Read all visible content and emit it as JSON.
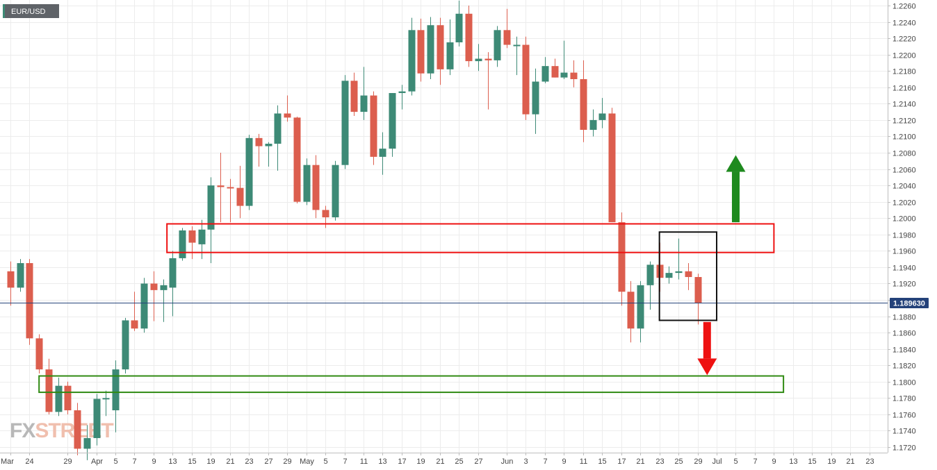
{
  "symbol": "EUR/USD",
  "last_price_label": "1.189630",
  "logo": {
    "text": "FXSTREET",
    "color_fx": "#b8b8b8",
    "color_street": "#f0bfae"
  },
  "colors": {
    "bull": "#3d8a76",
    "bear": "#dc5e4e",
    "grid": "#ececec",
    "price_line": "#24427a",
    "resistance_box": "#ee1111",
    "support_box": "#2f8a12",
    "focus_box": "#111111",
    "up_arrow": "#1f8a1f",
    "down_arrow": "#ee1111"
  },
  "chart_data": {
    "type": "candlestick",
    "title": "EUR/USD",
    "timeframe": "daily",
    "ylim": [
      1.1705,
      1.2265
    ],
    "y_ticks": [
      "1.2260",
      "1.2240",
      "1.2220",
      "1.2200",
      "1.2180",
      "1.2160",
      "1.2140",
      "1.2120",
      "1.2100",
      "1.2080",
      "1.2060",
      "1.2040",
      "1.2020",
      "1.2000",
      "1.1980",
      "1.1960",
      "1.1940",
      "1.1920",
      "1.1900",
      "1.1880",
      "1.1860",
      "1.1840",
      "1.1820",
      "1.1800",
      "1.1780",
      "1.1760",
      "1.1740",
      "1.1720"
    ],
    "x_labels": [
      {
        "slot": 0,
        "label": "Mar"
      },
      {
        "slot": 2,
        "label": "24"
      },
      {
        "slot": 6,
        "label": "29"
      },
      {
        "slot": 9,
        "label": "Apr"
      },
      {
        "slot": 11,
        "label": "5"
      },
      {
        "slot": 13,
        "label": "7"
      },
      {
        "slot": 15,
        "label": "9"
      },
      {
        "slot": 17,
        "label": "13"
      },
      {
        "slot": 19,
        "label": "15"
      },
      {
        "slot": 21,
        "label": "19"
      },
      {
        "slot": 23,
        "label": "21"
      },
      {
        "slot": 25,
        "label": "23"
      },
      {
        "slot": 27,
        "label": "27"
      },
      {
        "slot": 29,
        "label": "29"
      },
      {
        "slot": 31,
        "label": "May"
      },
      {
        "slot": 33,
        "label": "5"
      },
      {
        "slot": 35,
        "label": "7"
      },
      {
        "slot": 37,
        "label": "11"
      },
      {
        "slot": 39,
        "label": "13"
      },
      {
        "slot": 41,
        "label": "17"
      },
      {
        "slot": 43,
        "label": "19"
      },
      {
        "slot": 45,
        "label": "21"
      },
      {
        "slot": 47,
        "label": "25"
      },
      {
        "slot": 49,
        "label": "27"
      },
      {
        "slot": 52,
        "label": "Jun"
      },
      {
        "slot": 54,
        "label": "3"
      },
      {
        "slot": 56,
        "label": "7"
      },
      {
        "slot": 58,
        "label": "9"
      },
      {
        "slot": 60,
        "label": "11"
      },
      {
        "slot": 62,
        "label": "15"
      },
      {
        "slot": 64,
        "label": "17"
      },
      {
        "slot": 66,
        "label": "21"
      },
      {
        "slot": 68,
        "label": "23"
      },
      {
        "slot": 70,
        "label": "25"
      },
      {
        "slot": 72,
        "label": "29"
      },
      {
        "slot": 74,
        "label": "Jul"
      },
      {
        "slot": 76,
        "label": "5"
      },
      {
        "slot": 78,
        "label": "7"
      },
      {
        "slot": 80,
        "label": "9"
      },
      {
        "slot": 82,
        "label": "13"
      },
      {
        "slot": 84,
        "label": "15"
      },
      {
        "slot": 86,
        "label": "19"
      },
      {
        "slot": 88,
        "label": "21"
      },
      {
        "slot": 90,
        "label": "23"
      }
    ],
    "candles": [
      [
        1.1935,
        1.1947,
        1.1893,
        1.1915
      ],
      [
        1.1915,
        1.195,
        1.191,
        1.1945
      ],
      [
        1.1945,
        1.195,
        1.1845,
        1.1853
      ],
      [
        1.1853,
        1.1858,
        1.181,
        1.1815
      ],
      [
        1.1815,
        1.1828,
        1.176,
        1.1763
      ],
      [
        1.1763,
        1.1805,
        1.1758,
        1.1795
      ],
      [
        1.1795,
        1.18,
        1.176,
        1.1765
      ],
      [
        1.1765,
        1.1774,
        1.171,
        1.1718
      ],
      [
        1.1718,
        1.1747,
        1.1704,
        1.1731
      ],
      [
        1.1731,
        1.1785,
        1.1722,
        1.1779
      ],
      [
        1.1779,
        1.1789,
        1.1758,
        1.178
      ],
      [
        1.1765,
        1.1826,
        1.1738,
        1.1815
      ],
      [
        1.1815,
        1.1878,
        1.181,
        1.1875
      ],
      [
        1.1875,
        1.191,
        1.1862,
        1.1865
      ],
      [
        1.1865,
        1.1927,
        1.186,
        1.192
      ],
      [
        1.192,
        1.1935,
        1.1874,
        1.1912
      ],
      [
        1.1912,
        1.1925,
        1.1873,
        1.1918
      ],
      [
        1.1915,
        1.196,
        1.188,
        1.1951
      ],
      [
        1.1951,
        1.1988,
        1.1948,
        1.1985
      ],
      [
        1.1985,
        1.199,
        1.195,
        1.197
      ],
      [
        1.1968,
        1.1998,
        1.195,
        1.1986
      ],
      [
        1.1986,
        1.205,
        1.1945,
        1.204
      ],
      [
        1.204,
        1.208,
        1.1995,
        1.2038
      ],
      [
        1.2038,
        1.2048,
        1.1995,
        1.2037
      ],
      [
        1.2037,
        1.2064,
        1.2,
        1.2015
      ],
      [
        1.2015,
        1.2102,
        1.201,
        1.2098
      ],
      [
        1.2098,
        1.2103,
        1.2063,
        1.2088
      ],
      [
        1.2088,
        1.2093,
        1.2063,
        1.2091
      ],
      [
        1.2091,
        1.2138,
        1.2058,
        1.2128
      ],
      [
        1.2128,
        1.215,
        1.2118,
        1.2123
      ],
      [
        1.2123,
        1.2124,
        1.2018,
        1.202
      ],
      [
        1.202,
        1.2073,
        1.2016,
        1.2065
      ],
      [
        1.2065,
        1.2077,
        1.2,
        1.201
      ],
      [
        1.201,
        1.2015,
        1.1988,
        1.2001
      ],
      [
        1.2001,
        1.207,
        1.1997,
        1.2065
      ],
      [
        1.2065,
        1.2175,
        1.206,
        1.2168
      ],
      [
        1.2168,
        1.2178,
        1.2125,
        1.213
      ],
      [
        1.213,
        1.2185,
        1.212,
        1.215
      ],
      [
        1.215,
        1.2155,
        1.2065,
        1.2075
      ],
      [
        1.2075,
        1.2105,
        1.2053,
        1.2085
      ],
      [
        1.2085,
        1.2153,
        1.2075,
        1.2153
      ],
      [
        1.2153,
        1.2163,
        1.2133,
        1.2155
      ],
      [
        1.2155,
        1.2245,
        1.215,
        1.223
      ],
      [
        1.223,
        1.2244,
        1.2167,
        1.2177
      ],
      [
        1.2177,
        1.2246,
        1.217,
        1.2236
      ],
      [
        1.2236,
        1.2245,
        1.2163,
        1.2182
      ],
      [
        1.2182,
        1.2243,
        1.2175,
        1.2215
      ],
      [
        1.2215,
        1.2266,
        1.221,
        1.225
      ],
      [
        1.225,
        1.226,
        1.2185,
        1.2192
      ],
      [
        1.2192,
        1.2213,
        1.218,
        1.2195
      ],
      [
        1.2195,
        1.2203,
        1.2133,
        1.2193
      ],
      [
        1.2193,
        1.2235,
        1.2185,
        1.223
      ],
      [
        1.223,
        1.2256,
        1.2208,
        1.2212
      ],
      [
        1.2212,
        1.2222,
        1.2175,
        1.2212
      ],
      [
        1.2212,
        1.2222,
        1.212,
        1.2127
      ],
      [
        1.2127,
        1.2183,
        1.2103,
        1.2167
      ],
      [
        1.2167,
        1.2197,
        1.2165,
        1.2186
      ],
      [
        1.2186,
        1.2195,
        1.2172,
        1.2172
      ],
      [
        1.2172,
        1.2217,
        1.217,
        1.2178
      ],
      [
        1.2178,
        1.2193,
        1.216,
        1.217
      ],
      [
        1.217,
        1.2193,
        1.2093,
        1.2108
      ],
      [
        1.2108,
        1.2133,
        1.21,
        1.212
      ],
      [
        1.212,
        1.2147,
        1.211,
        1.2128
      ],
      [
        1.2128,
        1.2135,
        1.1995,
        1.1995
      ],
      [
        1.1995,
        1.2007,
        1.1893,
        1.191
      ],
      [
        1.191,
        1.1923,
        1.1848,
        1.1865
      ],
      [
        1.1865,
        1.1923,
        1.1848,
        1.1918
      ],
      [
        1.1918,
        1.1947,
        1.1888,
        1.1943
      ],
      [
        1.1943,
        1.197,
        1.191,
        1.1927
      ],
      [
        1.1927,
        1.1941,
        1.192,
        1.1933
      ],
      [
        1.1933,
        1.1975,
        1.1925,
        1.1935
      ],
      [
        1.1935,
        1.1945,
        1.1912,
        1.1928
      ],
      [
        1.1928,
        1.1932,
        1.187,
        1.1896
      ]
    ],
    "last_price": 1.18963,
    "annotations": [
      {
        "type": "rectangle",
        "role": "resistance",
        "y_top": 1.1993,
        "y_bottom": 1.1958,
        "slot_start": 16.4,
        "slot_end": 80.0
      },
      {
        "type": "rectangle",
        "role": "support",
        "y_top": 1.1807,
        "y_bottom": 1.1787,
        "slot_start": 3.0,
        "slot_end": 81.0
      },
      {
        "type": "rectangle",
        "role": "focus",
        "y_top": 1.1983,
        "y_bottom": 1.1875,
        "slot_start": 68.0,
        "slot_end": 74.0
      },
      {
        "type": "arrow",
        "direction": "up",
        "slot": 76.0,
        "y_from": 1.1995,
        "y_to": 1.2077
      },
      {
        "type": "arrow",
        "direction": "down",
        "slot": 73.0,
        "y_from": 1.1873,
        "y_to": 1.1808
      }
    ]
  }
}
